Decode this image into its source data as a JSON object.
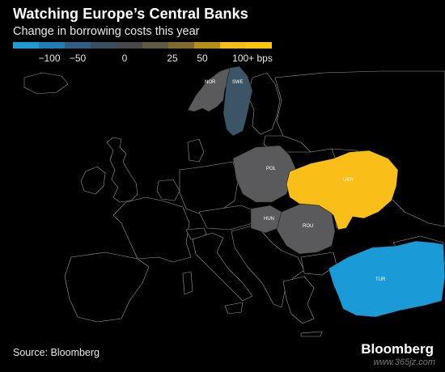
{
  "header": {
    "title": "Watching Europe’s Central Banks",
    "subtitle": "Change in borrowing costs this year"
  },
  "legend": {
    "colors": [
      "#1e9bd7",
      "#1d7fb4",
      "#2f5f86",
      "#3a4d60",
      "#48484a",
      "#5e5a43",
      "#7f6c2c",
      "#b48e15",
      "#f5bd16",
      "#ffc60b"
    ],
    "labels": [
      "−100",
      "−50",
      "0",
      "25",
      "50",
      "100+ bps"
    ]
  },
  "map": {
    "countries": [
      {
        "code": "NOR",
        "color": "#5a5a5c",
        "label": "NOR"
      },
      {
        "code": "SWE",
        "color": "#3b5566",
        "label": "SWE"
      },
      {
        "code": "POL",
        "color": "#5a5a5c",
        "label": "POL"
      },
      {
        "code": "UKR",
        "color": "#f9be17",
        "label": "UKR"
      },
      {
        "code": "HUN",
        "color": "#5a5a5c",
        "label": "HUN"
      },
      {
        "code": "ROU",
        "color": "#5a5a5c",
        "label": "ROU"
      },
      {
        "code": "TUR",
        "color": "#1b9ad8",
        "label": "TUR"
      }
    ]
  },
  "footer": {
    "source": "Source: Bloomberg",
    "brand": "Bloomberg",
    "watermark": "www.365jz.com"
  }
}
